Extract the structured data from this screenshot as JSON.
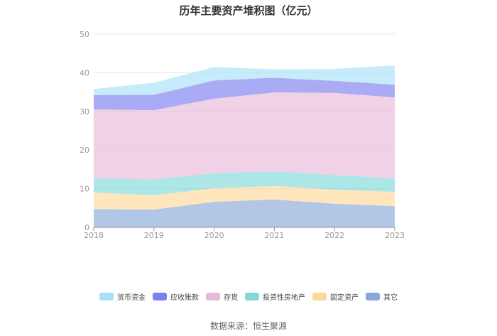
{
  "chart_data": {
    "type": "area",
    "stacked": true,
    "title": "历年主要资产堆积图（亿元）",
    "categories": [
      "2018",
      "2019",
      "2020",
      "2021",
      "2022",
      "2023"
    ],
    "ylim": [
      0,
      50
    ],
    "yticks": [
      "0",
      "10",
      "20",
      "30",
      "40",
      "50"
    ],
    "grid": true,
    "legend_position": "bottom",
    "series": [
      {
        "name": "其它",
        "color": "#88a8d8",
        "values": [
          4.7,
          4.6,
          6.6,
          7.2,
          6.1,
          5.5
        ]
      },
      {
        "name": "固定资产",
        "color": "#ffd898",
        "values": [
          4.3,
          3.7,
          3.5,
          3.5,
          3.6,
          3.7
        ]
      },
      {
        "name": "投资性房地产",
        "color": "#80d8d8",
        "values": [
          3.7,
          4.1,
          3.9,
          3.8,
          3.8,
          3.5
        ]
      },
      {
        "name": "存货",
        "color": "#e8b8d8",
        "values": [
          17.8,
          17.9,
          19.3,
          20.4,
          21.3,
          20.9
        ]
      },
      {
        "name": "应收账款",
        "color": "#7b7ff0",
        "values": [
          3.7,
          4.0,
          4.7,
          3.8,
          3.1,
          3.3
        ]
      },
      {
        "name": "货币资金",
        "color": "#a8e0f8",
        "values": [
          1.6,
          3.1,
          3.5,
          2.2,
          3.1,
          5.0
        ]
      }
    ],
    "legend_order": [
      "货币资金",
      "应收账款",
      "存货",
      "投资性房地产",
      "固定资产",
      "其它"
    ]
  },
  "source": "数据来源：恒生聚源"
}
